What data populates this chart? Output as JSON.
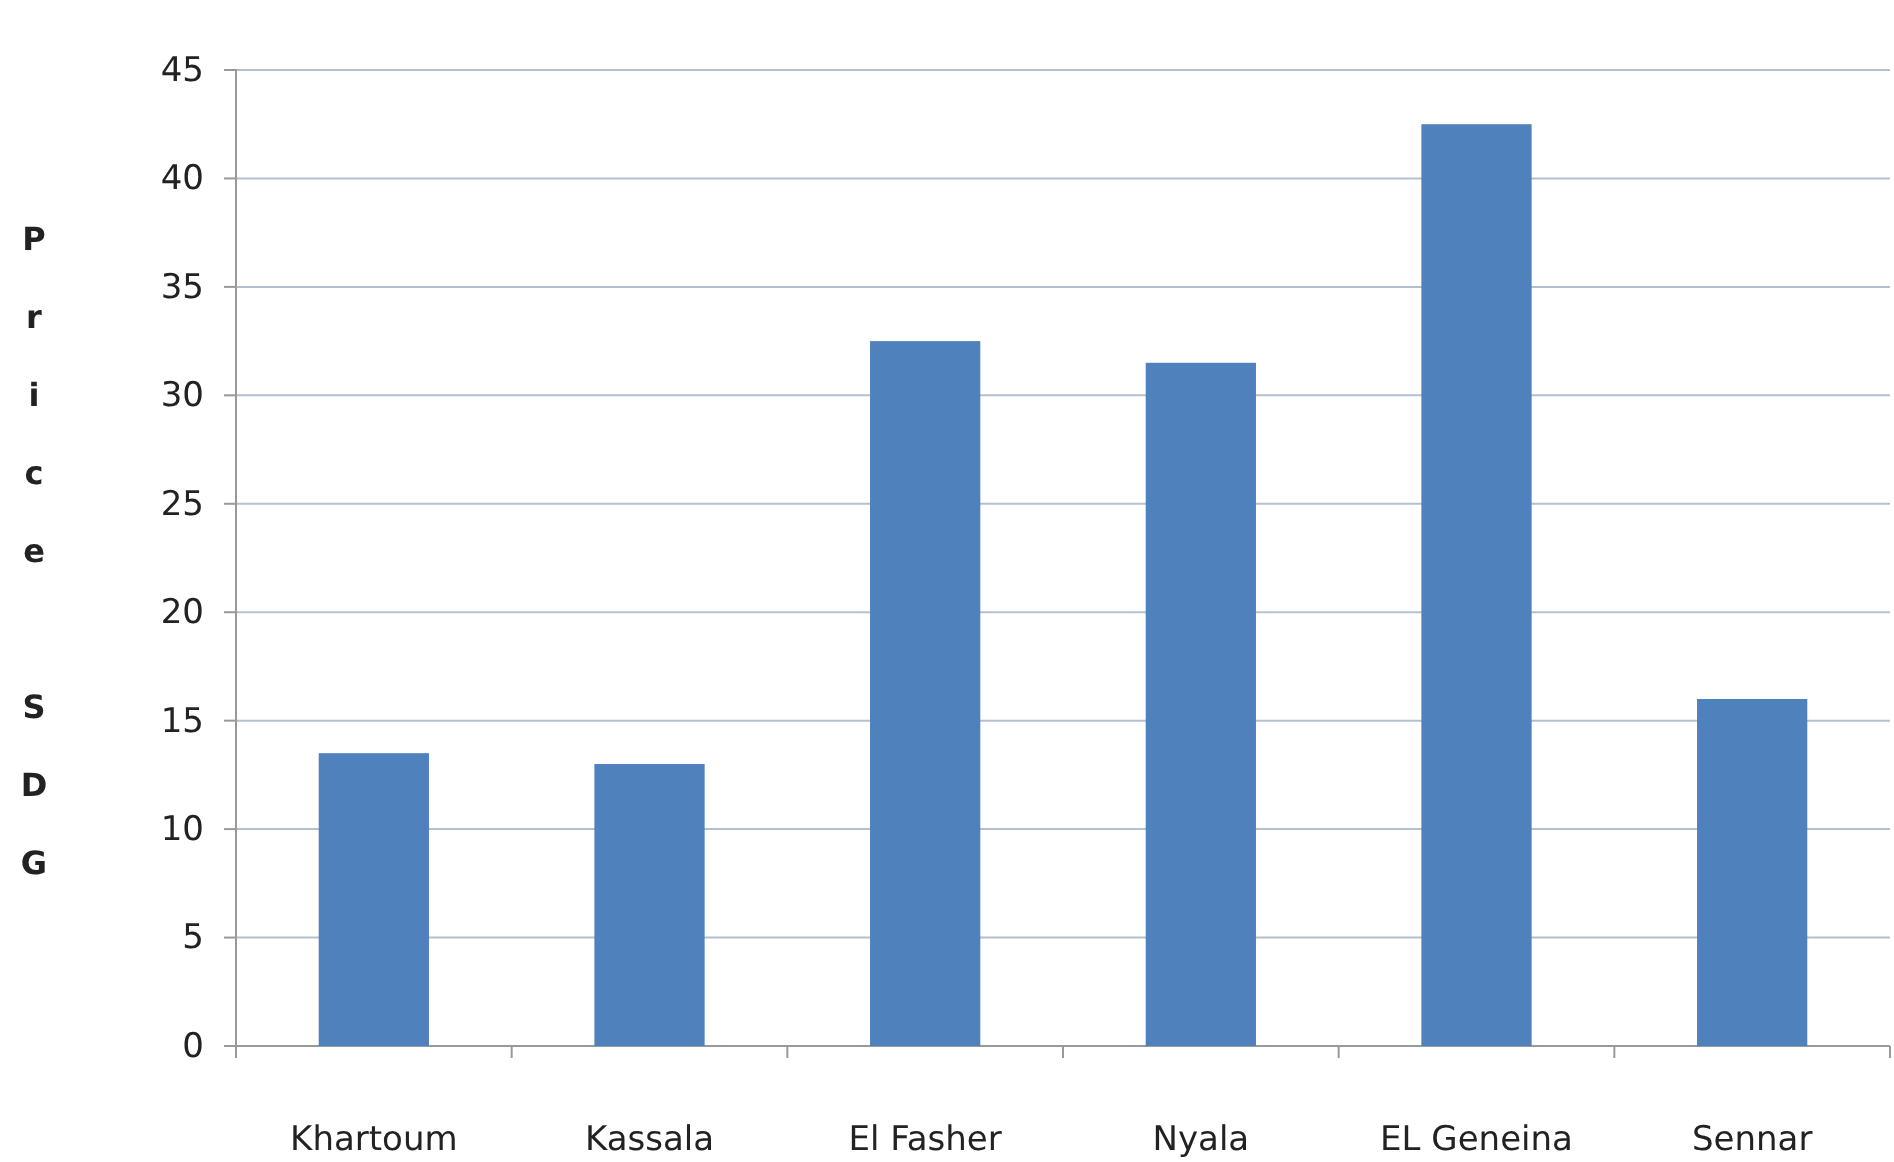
{
  "chart_data": {
    "type": "bar",
    "ylabel": "Price SDG",
    "categories": [
      "Khartoum",
      "Kassala",
      "El Fasher",
      "Nyala",
      "EL Geneina",
      "Sennar"
    ],
    "values": [
      13.5,
      13,
      32.5,
      31.5,
      42.5,
      16
    ],
    "color": "#4f81bd",
    "ylim": [
      0,
      45
    ],
    "yticks": [
      0,
      5,
      10,
      15,
      20,
      25,
      30,
      35,
      40,
      45
    ],
    "grid": "y"
  }
}
